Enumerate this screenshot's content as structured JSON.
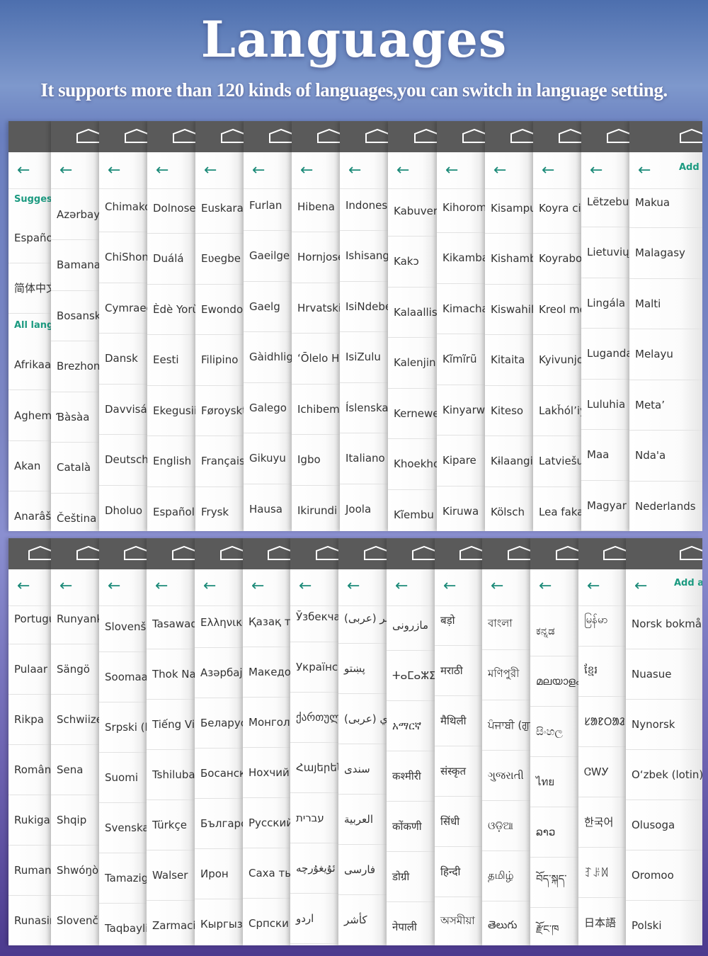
{
  "header": {
    "title": "Languages",
    "subtitle": "It supports more than 120 kinds of languages,you can switch in language setting."
  },
  "colors": {
    "accent": "#1b8a78",
    "toolbar": "#5a5a5a"
  },
  "icons": {
    "home": "home-icon",
    "back": "arrow-left-icon"
  },
  "top_panel": {
    "add_label": "Add a",
    "first_column": [
      {
        "kind": "section",
        "text": "Suggest"
      },
      {
        "kind": "item",
        "text": "Español"
      },
      {
        "kind": "item",
        "text": "简体中文"
      },
      {
        "kind": "section",
        "text": "All langu"
      },
      {
        "kind": "item",
        "text": "Afrikaans"
      },
      {
        "kind": "item",
        "text": "Aghem"
      },
      {
        "kind": "item",
        "text": "Akan"
      },
      {
        "kind": "item",
        "text": "Anarâškielâ"
      }
    ],
    "columns": [
      [
        "Azərbaycan",
        "Bamanakan",
        "Bosanski",
        "Brezhoneg",
        "Ɓàsàa",
        "Català",
        "Čeština"
      ],
      [
        "Chimakonde",
        "ChiShona",
        "Cymraeg",
        "Dansk",
        "Davvisámegiella",
        "Deutsch",
        "Dholuo"
      ],
      [
        "Dolnoserbšćina",
        "Duálá",
        "Èdè Yorùbá",
        "Eesti",
        "Ekegusii",
        "English",
        "Español"
      ],
      [
        "Euskara",
        "Eʋegbe",
        "Ewondo",
        "Filipino",
        "Føroyskt",
        "Français",
        "Frysk"
      ],
      [
        "Furlan",
        "Gaeilge",
        "Gaelg",
        "Gàidhlig",
        "Galego",
        "Gikuyu",
        "Hausa"
      ],
      [
        "Hibena",
        "Hornjoserbšćina",
        "Hrvatski",
        "ʻŌlelo Hawaiʻi",
        "Ichibemba",
        "Igbo",
        "Ikirundi"
      ],
      [
        "Indonesia",
        "Ishisangu",
        "IsiNdebele",
        "IsiZulu",
        "Íslenska",
        "Italiano",
        "Joola"
      ],
      [
        "Kabuverdianu",
        "Kakɔ",
        "Kalaallisut",
        "Kalenjin",
        "Kernewek",
        "Khoekhoegowab",
        "Kĩembu"
      ],
      [
        "Kihorombo",
        "Kikamba",
        "Kimachame",
        "Kĩmĩrũ",
        "Kinyarwanda",
        "Kipare",
        "Kiruwa"
      ],
      [
        "Kisampur",
        "Kishambaa",
        "Kiswahili",
        "Kitaita",
        "Kiteso",
        "Kɨlaangi",
        "Kölsch"
      ],
      [
        "Koyra ciini",
        "Koyraboro senni",
        "Kreol morisien",
        "Kyivunjo",
        "Lakȟólʼiyapi",
        "Latviešu",
        "Lea fakaTonga"
      ],
      [
        "Lëtzebuergesch",
        "Lietuvių",
        "Lingála",
        "Luganda",
        "Luluhia",
        "Maa",
        "Magyar"
      ],
      [
        "Makua",
        "Malagasy",
        "Malti",
        "Melayu",
        "Metaʼ",
        "Nda'a",
        "Nederlands"
      ]
    ]
  },
  "bottom_panel": {
    "add_label": "Add a l",
    "columns": [
      [
        "Português",
        "Pulaar",
        "Rikpa",
        "Română",
        "Rukiga",
        "Rumantsch",
        "Runasimi"
      ],
      [
        "Runyankore",
        "Sängö",
        "Schwiizertüütsch",
        "Sena",
        "Shqip",
        "Shwóŋò ngiemboon",
        "Slovenčina"
      ],
      [
        "Slovenščina",
        "Soomaali",
        "Srpski (latinica)",
        "Suomi",
        "Svenska",
        "Tamazight",
        "Taqbaylit"
      ],
      [
        "Tasawaq senni",
        "Thok Nath",
        "Tiếng Việt",
        "Tshiluba",
        "Türkçe",
        "Walser",
        "Zarmaciine"
      ],
      [
        "Ελληνικά",
        "Азәрбајҹан",
        "Беларуская",
        "Босански",
        "Български",
        "Ирон",
        "Кыргызча"
      ],
      [
        "Қазақ тілі",
        "Македонски",
        "Монгол",
        "Нохчийн",
        "Русский",
        "Саха тыла",
        "Српски"
      ],
      [
        "Ўзбекча",
        "Українська",
        "ქართული",
        "Հայերեն",
        "עברית",
        "ئۇيغۇرچە",
        "اردو"
      ],
      [
        "(عربی) کٲشُر",
        "پښتو",
        "(عربی) سنڌي",
        "سندی",
        "العربية",
        "فارسی",
        "کأشر"
      ],
      [
        "مازرونی",
        "ⵜⴰⵎⴰⵣⵉⵖⵜ",
        "አማርኛ",
        "कश्मीरी",
        "कोंकणी",
        "डोग्री",
        "नेपाली"
      ],
      [
        "बड़ो",
        "मराठी",
        "मैथिली",
        "संस्कृत",
        "सिंधी",
        "हिन्दी",
        "অসমীয়া"
      ],
      [
        "বাংলা",
        "মণিপুরী",
        "ਪੰਜਾਬੀ (ਗੁਰਮੁਖੀ)",
        "ગુજરાતી",
        "ଓଡ଼ିଆ",
        "தமிழ்",
        "తెలుగు"
      ],
      [
        "ಕನ್ನಡ",
        "മലയാളം",
        "සිංහල",
        "ไทย",
        "ລາວ",
        "བོད་སྐད་",
        "རྫོང་ཁ"
      ],
      [
        "မြန်မာ",
        "ខ្មែរ",
        "ᱥᱟᱱᱛᱟᱲᱤ",
        "ᏣᎳᎩ",
        "한국어",
        "ꆈꌠꉙ",
        "日本語"
      ],
      [
        "Norsk bokmål",
        "Nuasue",
        "Nynorsk",
        "O‘zbek (lotin)",
        "Olusoga",
        "Oromoo",
        "Polski"
      ]
    ]
  }
}
